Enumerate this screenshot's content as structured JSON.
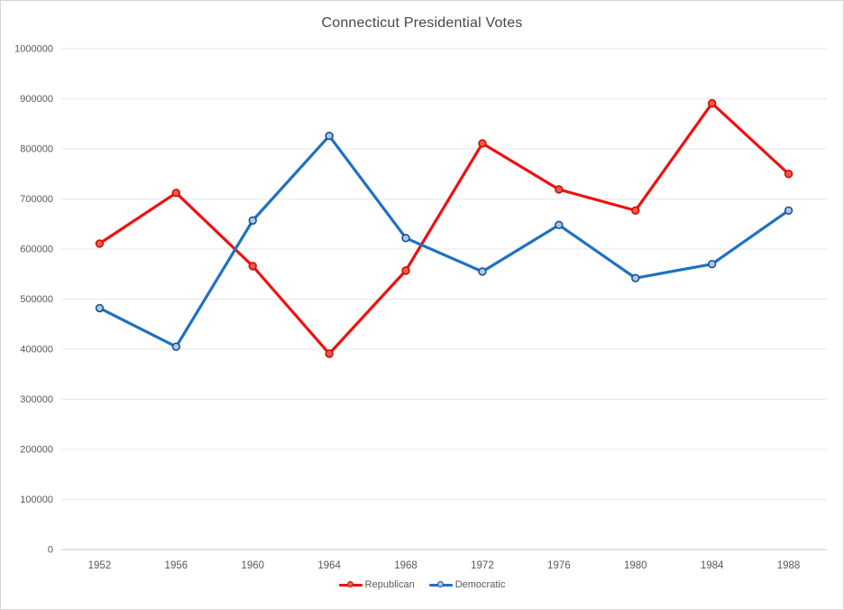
{
  "chart_data": {
    "type": "line",
    "title": "Connecticut Presidential Votes",
    "categories": [
      "1952",
      "1956",
      "1960",
      "1964",
      "1968",
      "1972",
      "1976",
      "1980",
      "1984",
      "1988"
    ],
    "series": [
      {
        "name": "Republican",
        "color": "#ee1111",
        "marker_fill": "#f4574e",
        "marker_stroke": "#cc1100",
        "values": [
          611000,
          712000,
          566000,
          391000,
          557000,
          811000,
          719000,
          677000,
          891000,
          750000
        ]
      },
      {
        "name": "Democratic",
        "color": "#2071c0",
        "marker_fill": "#a9c9ea",
        "marker_stroke": "#1b5190",
        "values": [
          482000,
          405000,
          657000,
          826000,
          622000,
          555000,
          648000,
          542000,
          570000,
          677000
        ]
      }
    ],
    "xlabel": "",
    "ylabel": "",
    "ylim": [
      0,
      1000000
    ],
    "y_tick_labels": [
      "0",
      "100000",
      "200000",
      "300000",
      "400000",
      "500000",
      "600000",
      "700000",
      "800000",
      "900000",
      "1000000"
    ],
    "grid": true,
    "legend_position": "bottom",
    "colors": {
      "gridline": "#e7e7e7",
      "axis_line": "#c9c9c9",
      "tick_label": "#595959",
      "title": "#474747",
      "background": "#ffffff",
      "frame_border": "#d5d5d5"
    }
  }
}
